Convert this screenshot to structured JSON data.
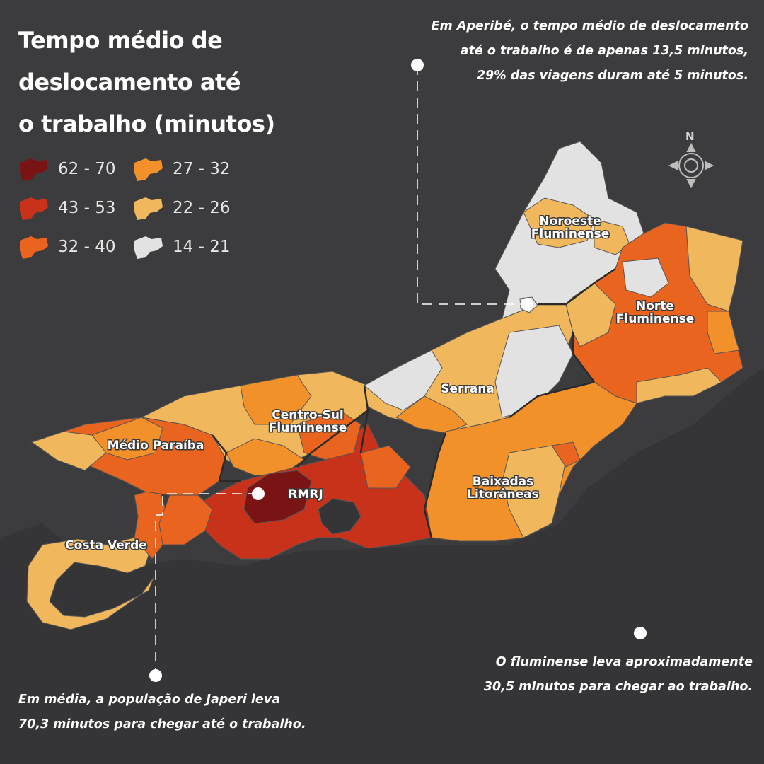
{
  "title": {
    "line1": "Tempo médio de",
    "line2": "deslocamento até",
    "line3": "o trabalho (minutos)"
  },
  "legend": [
    {
      "label": "62 - 70",
      "color": "#7a1414"
    },
    {
      "label": "43 - 53",
      "color": "#c8321a"
    },
    {
      "label": "32 - 40",
      "color": "#e8641f"
    },
    {
      "label": "27 - 32",
      "color": "#f2902a"
    },
    {
      "label": "22 - 26",
      "color": "#f0b75c"
    },
    {
      "label": "14 - 21",
      "color": "#e2e2e2"
    }
  ],
  "annotations": {
    "aperibe": {
      "line1": "Em Aperibé, o tempo médio de deslocamento",
      "line2": "até o trabalho é de apenas 13,5 minutos,",
      "line3": "29% das viagens duram até 5 minutos."
    },
    "state_average": {
      "line1": "O fluminense leva aproximadamente",
      "line2": "30,5 minutos para chegar ao trabalho."
    },
    "japeri": {
      "line1": "Em média, a população de Japeri leva",
      "line2": "70,3 minutos para chegar até o trabalho."
    }
  },
  "regions": {
    "noroeste": {
      "line1": "Noroeste",
      "line2": "Fluminense"
    },
    "norte": {
      "line1": "Norte",
      "line2": "Fluminense"
    },
    "serrana": {
      "line1": "Serrana"
    },
    "centro_sul": {
      "line1": "Centro-Sul",
      "line2": "Fluminense"
    },
    "medio_paraiba": {
      "line1": "Médio Paraíba"
    },
    "rmrj": {
      "line1": "RMRJ"
    },
    "baixadas": {
      "line1": "Baixadas",
      "line2": "Litorâneas"
    },
    "costa_verde": {
      "line1": "Costa Verde"
    }
  },
  "compass": {
    "north_label": "N",
    "icon": "compass-rose-icon"
  },
  "colors": {
    "background": "#3c3c3e",
    "sea": "#353537",
    "class_62_70": "#7a1414",
    "class_43_53": "#c8321a",
    "class_32_40": "#e8641f",
    "class_27_32": "#f2902a",
    "class_22_26": "#f0b75c",
    "class_14_21": "#e2e2e2"
  }
}
